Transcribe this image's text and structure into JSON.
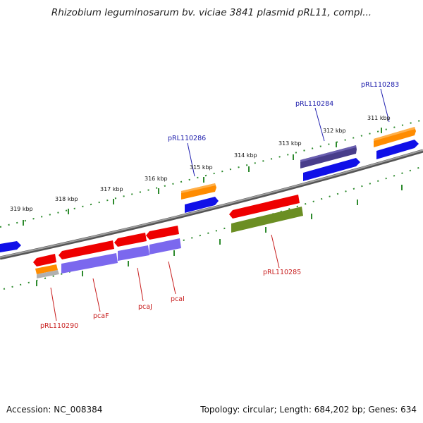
{
  "title": "Rhizobium leguminosarum bv. viciae 3841 plasmid pRL11, compl...",
  "footer": {
    "accession": "Accession: NC_008384",
    "summary": "Topology: circular; Length: 684,202 bp; Genes: 634"
  },
  "colors": {
    "backbone": "#808080",
    "tick": "#2e8b2e",
    "label_forward": "#1a1aaa",
    "label_reverse": "#c81e1e",
    "gene_blue": "#1010e8",
    "gene_orange": "#ff8c00",
    "gene_red": "#ee0000",
    "gene_purple": "#7b68ee",
    "gene_navy": "#483d8b",
    "gene_olive": "#6b8e23",
    "gene_silver": "#b0b0b0"
  },
  "scale_labels": [
    "319 kbp",
    "318 kbp",
    "317 kbp",
    "316 kbp",
    "315 kbp",
    "314 kbp",
    "313 kbp",
    "312 kbp",
    "311 kbp"
  ],
  "gene_labels": {
    "forward": [
      "pRL110286",
      "pRL110284",
      "pRL110283"
    ],
    "reverse": [
      "pRL110290",
      "pcaF",
      "pcaJ",
      "pcaI",
      "pRL110285"
    ]
  }
}
